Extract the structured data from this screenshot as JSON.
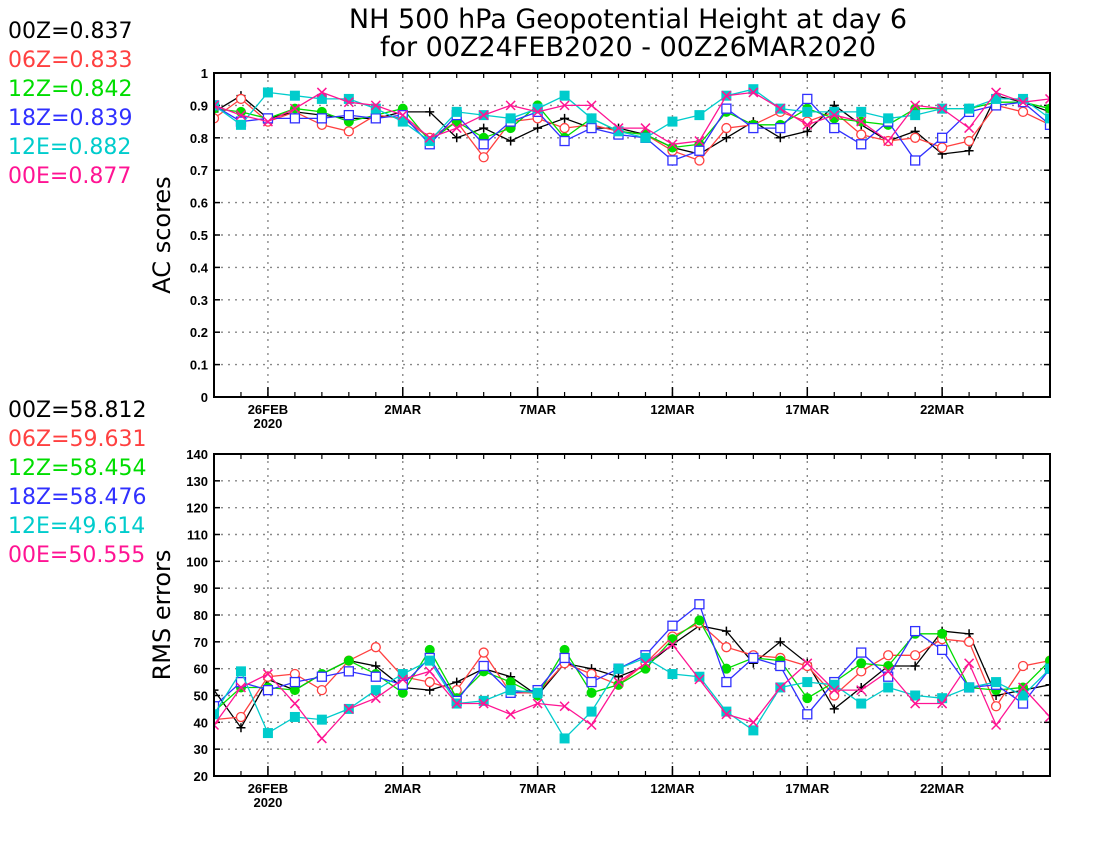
{
  "title": {
    "line1": "NH 500 hPa Geopotential Height at day 6",
    "line2": "for 00Z24FEB2020 - 00Z26MAR2020"
  },
  "colors": {
    "00Z": "#000000",
    "06Z": "#ff4040",
    "12Z": "#00dd00",
    "18Z": "#3030ff",
    "12E": "#00cccc",
    "00E": "#ff1493"
  },
  "chart_data": [
    {
      "type": "line",
      "ylabel": "AC scores",
      "xlabel": "",
      "ylim": [
        0,
        1
      ],
      "yticks": [
        "0",
        "0.1",
        "0.2",
        "0.3",
        "0.4",
        "0.5",
        "0.6",
        "0.7",
        "0.8",
        "0.9",
        "1"
      ],
      "x_range": [
        "2020-02-24",
        "2020-03-26"
      ],
      "x_ticks": [
        "26FEB",
        "2MAR",
        "7MAR",
        "12MAR",
        "17MAR",
        "22MAR"
      ],
      "x_tick_dates": [
        "2020-02-26",
        "2020-03-02",
        "2020-03-07",
        "2020-03-12",
        "2020-03-17",
        "2020-03-22"
      ],
      "x_tick_sublabel": "2020",
      "grid": true,
      "x": [
        "2020-02-24",
        "2020-02-25",
        "2020-02-26",
        "2020-02-27",
        "2020-02-28",
        "2020-02-29",
        "2020-03-01",
        "2020-03-02",
        "2020-03-03",
        "2020-03-04",
        "2020-03-05",
        "2020-03-06",
        "2020-03-07",
        "2020-03-08",
        "2020-03-09",
        "2020-03-10",
        "2020-03-11",
        "2020-03-12",
        "2020-03-13",
        "2020-03-14",
        "2020-03-15",
        "2020-03-16",
        "2020-03-17",
        "2020-03-18",
        "2020-03-19",
        "2020-03-20",
        "2020-03-21",
        "2020-03-22",
        "2020-03-23",
        "2020-03-24",
        "2020-03-25",
        "2020-03-26"
      ],
      "series": [
        {
          "name": "00Z",
          "marker": "plus",
          "summary_label": "00Z=0.837",
          "values": [
            0.88,
            0.93,
            0.86,
            0.88,
            0.87,
            0.86,
            0.86,
            0.88,
            0.88,
            0.8,
            0.83,
            0.79,
            0.83,
            0.86,
            0.83,
            0.83,
            0.81,
            0.77,
            0.75,
            0.8,
            0.85,
            0.8,
            0.82,
            0.9,
            0.84,
            0.79,
            0.82,
            0.75,
            0.76,
            0.93,
            0.91,
            0.88
          ]
        },
        {
          "name": "06Z",
          "marker": "circle",
          "summary_label": "06Z=0.833",
          "values": [
            0.86,
            0.92,
            0.85,
            0.88,
            0.84,
            0.82,
            0.87,
            0.86,
            0.8,
            0.85,
            0.74,
            0.85,
            0.86,
            0.83,
            0.84,
            0.82,
            0.81,
            0.76,
            0.73,
            0.83,
            0.84,
            0.88,
            0.85,
            0.88,
            0.81,
            0.79,
            0.8,
            0.77,
            0.79,
            0.9,
            0.88,
            0.84
          ]
        },
        {
          "name": "12Z",
          "marker": "filled-circle",
          "summary_label": "12Z=0.842",
          "values": [
            0.89,
            0.88,
            0.86,
            0.89,
            0.88,
            0.85,
            0.87,
            0.89,
            0.79,
            0.85,
            0.8,
            0.83,
            0.9,
            0.8,
            0.86,
            0.82,
            0.81,
            0.77,
            0.78,
            0.88,
            0.84,
            0.84,
            0.89,
            0.86,
            0.85,
            0.84,
            0.89,
            0.89,
            0.89,
            0.91,
            0.91,
            0.89
          ]
        },
        {
          "name": "18Z",
          "marker": "square",
          "summary_label": "18Z=0.839",
          "values": [
            0.9,
            0.85,
            0.86,
            0.86,
            0.86,
            0.87,
            0.86,
            0.87,
            0.78,
            0.87,
            0.78,
            0.85,
            0.88,
            0.79,
            0.83,
            0.81,
            0.8,
            0.73,
            0.76,
            0.89,
            0.83,
            0.83,
            0.92,
            0.83,
            0.78,
            0.85,
            0.73,
            0.8,
            0.88,
            0.9,
            0.91,
            0.84
          ]
        },
        {
          "name": "12E",
          "marker": "filled-square",
          "summary_label": "12E=0.882",
          "values": [
            0.9,
            0.84,
            0.94,
            0.93,
            0.92,
            0.92,
            0.89,
            0.85,
            0.79,
            0.88,
            0.87,
            0.86,
            0.89,
            0.93,
            0.86,
            0.82,
            0.8,
            0.85,
            0.87,
            0.93,
            0.95,
            0.89,
            0.88,
            0.88,
            0.88,
            0.86,
            0.87,
            0.89,
            0.89,
            0.92,
            0.92,
            0.86
          ]
        },
        {
          "name": "00E",
          "marker": "x",
          "summary_label": "00E=0.877",
          "values": [
            0.9,
            0.87,
            0.85,
            0.89,
            0.94,
            0.91,
            0.9,
            0.87,
            0.8,
            0.83,
            0.87,
            0.9,
            0.88,
            0.9,
            0.9,
            0.83,
            0.83,
            0.78,
            0.79,
            0.93,
            0.94,
            0.89,
            0.84,
            0.87,
            0.85,
            0.79,
            0.9,
            0.89,
            0.83,
            0.94,
            0.91,
            0.92
          ]
        }
      ]
    },
    {
      "type": "line",
      "ylabel": "RMS errors",
      "xlabel": "",
      "ylim": [
        20,
        140
      ],
      "yticks": [
        "20",
        "30",
        "40",
        "50",
        "60",
        "70",
        "80",
        "90",
        "100",
        "110",
        "120",
        "130",
        "140"
      ],
      "x_range": [
        "2020-02-24",
        "2020-03-26"
      ],
      "x_ticks": [
        "26FEB",
        "2MAR",
        "7MAR",
        "12MAR",
        "17MAR",
        "22MAR"
      ],
      "x_tick_dates": [
        "2020-02-26",
        "2020-03-02",
        "2020-03-07",
        "2020-03-12",
        "2020-03-17",
        "2020-03-22"
      ],
      "x_tick_sublabel": "2020",
      "grid": true,
      "x": [
        "2020-02-24",
        "2020-02-25",
        "2020-02-26",
        "2020-02-27",
        "2020-02-28",
        "2020-02-29",
        "2020-03-01",
        "2020-03-02",
        "2020-03-03",
        "2020-03-04",
        "2020-03-05",
        "2020-03-06",
        "2020-03-07",
        "2020-03-08",
        "2020-03-09",
        "2020-03-10",
        "2020-03-11",
        "2020-03-12",
        "2020-03-13",
        "2020-03-14",
        "2020-03-15",
        "2020-03-16",
        "2020-03-17",
        "2020-03-18",
        "2020-03-19",
        "2020-03-20",
        "2020-03-21",
        "2020-03-22",
        "2020-03-23",
        "2020-03-24",
        "2020-03-25",
        "2020-03-26"
      ],
      "series": [
        {
          "name": "00Z",
          "marker": "plus",
          "summary_label": "00Z=58.812",
          "values": [
            52,
            38,
            56,
            52,
            58,
            63,
            61,
            53,
            52,
            55,
            60,
            57,
            50,
            62,
            60,
            57,
            61,
            69,
            76,
            74,
            62,
            70,
            62,
            45,
            53,
            61,
            61,
            74,
            73,
            50,
            52,
            54
          ]
        },
        {
          "name": "06Z",
          "marker": "circle",
          "summary_label": "06Z=59.631",
          "values": [
            41,
            42,
            57,
            58,
            52,
            63,
            68,
            57,
            55,
            52,
            66,
            51,
            51,
            62,
            58,
            54,
            62,
            72,
            77,
            68,
            65,
            64,
            61,
            50,
            59,
            65,
            65,
            71,
            70,
            46,
            61,
            63
          ]
        },
        {
          "name": "12Z",
          "marker": "filled-circle",
          "summary_label": "12Z=58.454",
          "values": [
            44,
            53,
            53,
            52,
            58,
            63,
            58,
            51,
            67,
            49,
            59,
            55,
            50,
            67,
            51,
            54,
            60,
            71,
            78,
            60,
            64,
            63,
            49,
            55,
            62,
            61,
            73,
            73,
            53,
            52,
            53,
            63
          ]
        },
        {
          "name": "18Z",
          "marker": "square",
          "summary_label": "18Z=58.476",
          "values": [
            46,
            55,
            52,
            55,
            57,
            59,
            57,
            54,
            64,
            48,
            61,
            51,
            52,
            64,
            55,
            60,
            65,
            76,
            84,
            55,
            64,
            61,
            43,
            55,
            66,
            57,
            74,
            67,
            53,
            54,
            47,
            60
          ]
        },
        {
          "name": "12E",
          "marker": "filled-square",
          "summary_label": "12E=49.614",
          "values": [
            43,
            59,
            36,
            42,
            41,
            45,
            52,
            58,
            63,
            47,
            48,
            52,
            51,
            34,
            44,
            60,
            64,
            58,
            57,
            44,
            37,
            53,
            55,
            54,
            47,
            53,
            50,
            49,
            53,
            55,
            50,
            60
          ]
        },
        {
          "name": "00E",
          "marker": "x",
          "summary_label": "00E=50.555",
          "values": [
            39,
            53,
            58,
            47,
            34,
            45,
            49,
            56,
            59,
            47,
            47,
            43,
            47,
            46,
            39,
            55,
            62,
            69,
            56,
            43,
            40,
            53,
            62,
            52,
            52,
            59,
            47,
            47,
            62,
            39,
            53,
            42
          ]
        }
      ]
    }
  ]
}
